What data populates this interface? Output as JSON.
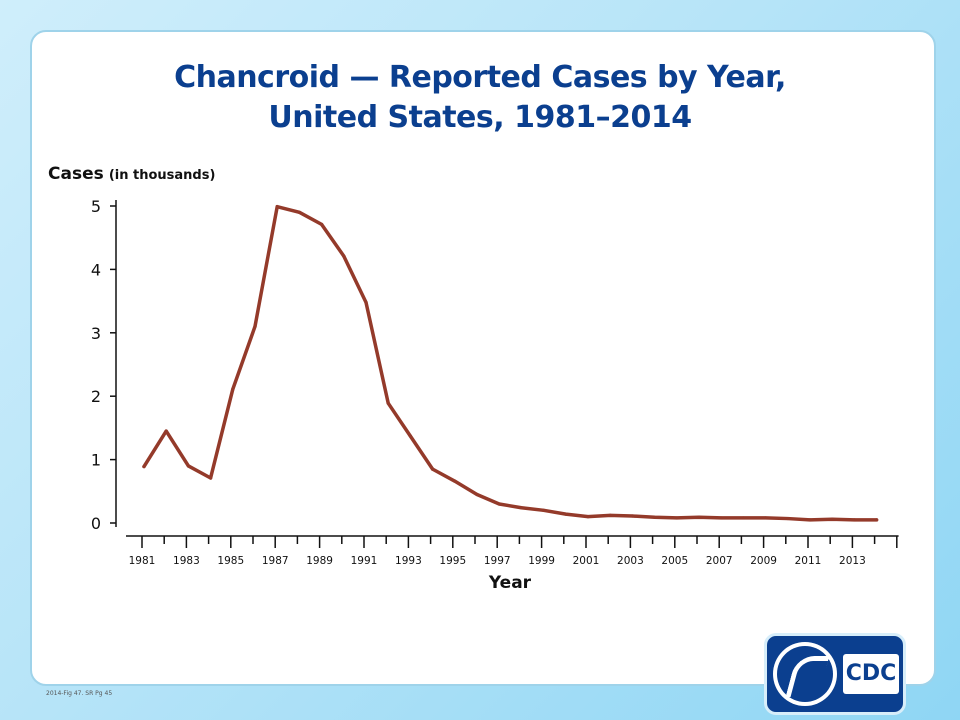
{
  "chart_data": {
    "type": "line",
    "title_line1": "Chancroid — Reported Cases by Year,",
    "title_line2": "United States, 1981–2014",
    "ylabel": "Cases",
    "ylabel_unit": "(in thousands)",
    "xlabel": "Year",
    "ylim": [
      0,
      5
    ],
    "xlim": [
      1981,
      2014
    ],
    "yticks": [
      "0",
      "1",
      "2",
      "3",
      "4",
      "5"
    ],
    "xtick_labels": [
      "1981",
      "1983",
      "1985",
      "1987",
      "1989",
      "1991",
      "1993",
      "1995",
      "1997",
      "1999",
      "2001",
      "2003",
      "2005",
      "2007",
      "2009",
      "2011",
      "2013"
    ],
    "grid": false,
    "legend": false,
    "line_color": "#943a2a",
    "x": [
      1981,
      1982,
      1983,
      1984,
      1985,
      1986,
      1987,
      1988,
      1989,
      1990,
      1991,
      1992,
      1993,
      1994,
      1995,
      1996,
      1997,
      1998,
      1999,
      2000,
      2001,
      2002,
      2003,
      2004,
      2005,
      2006,
      2007,
      2008,
      2009,
      2010,
      2011,
      2012,
      2013,
      2014
    ],
    "values": [
      0.89,
      1.45,
      0.9,
      0.71,
      2.11,
      3.1,
      4.99,
      4.9,
      4.71,
      4.21,
      3.48,
      1.89,
      1.37,
      0.85,
      0.66,
      0.45,
      0.3,
      0.24,
      0.2,
      0.14,
      0.1,
      0.12,
      0.11,
      0.09,
      0.08,
      0.09,
      0.08,
      0.08,
      0.08,
      0.07,
      0.05,
      0.06,
      0.05,
      0.05
    ]
  },
  "footnote": "2014-Fig 47. SR Pg 45",
  "logo": {
    "seal_icon": "hhs-seal-icon",
    "text": "CDC",
    "bg_color": "#0b3f8f"
  }
}
